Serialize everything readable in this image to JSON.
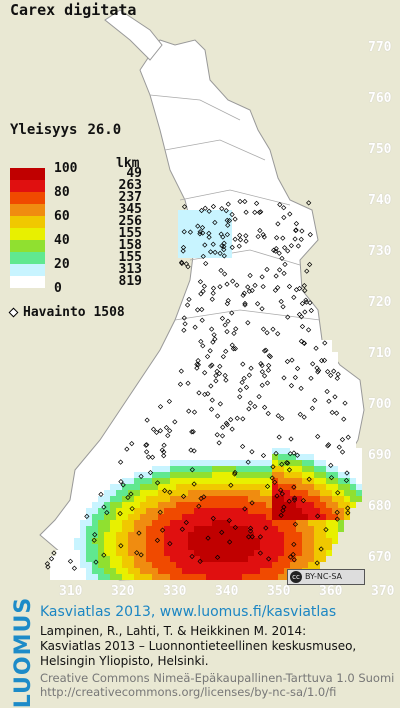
{
  "species": "Carex digitata",
  "frequency": {
    "label": "Yleisyys",
    "value": "26.0"
  },
  "legend": {
    "count_header": "lkm",
    "tick_labels": [
      "100",
      "80",
      "60",
      "40",
      "20",
      "0"
    ],
    "classes": [
      {
        "color": "#c00000",
        "count": "49"
      },
      {
        "color": "#e01010",
        "count": "263"
      },
      {
        "color": "#f04a00",
        "count": "237"
      },
      {
        "color": "#f08c10",
        "count": "345"
      },
      {
        "color": "#f0c800",
        "count": "256"
      },
      {
        "color": "#e8f000",
        "count": "155"
      },
      {
        "color": "#90e030",
        "count": "158"
      },
      {
        "color": "#60e890",
        "count": "155"
      },
      {
        "color": "#c8f4ff",
        "count": "313"
      },
      {
        "color": "#ffffff",
        "count": "819"
      }
    ]
  },
  "observations": {
    "label": "Havainto",
    "count": "1508"
  },
  "y_axis_labels": [
    "770",
    "760",
    "750",
    "740",
    "730",
    "720",
    "710",
    "700",
    "690",
    "680",
    "670"
  ],
  "x_axis_labels": [
    "310",
    "320",
    "330",
    "340",
    "350",
    "360",
    "370"
  ],
  "license_badge": "BY-NC-SA",
  "footer": {
    "title": "Kasviatlas 2013, www.luomus.fi/kasviatlas",
    "citation_line1": "Lampinen, R., Lahti, T. & Heikkinen M. 2014:",
    "citation_line2": "Kasviatlas 2013 – Luonnontieteellinen keskusmuseo,",
    "citation_line3": "Helsingin Yliopisto, Helsinki.",
    "license_line1": "Creative Commons Nimeä-Epäkaupallinen-Tarttuva 1.0 Suomi",
    "license_line2": "http://creativecommons.org/licenses/by-nc-sa/1.0/fi"
  },
  "logo_text": "LUOMUS",
  "colors": {
    "background": "#e9e8d3",
    "accent": "#1d8bc8"
  }
}
